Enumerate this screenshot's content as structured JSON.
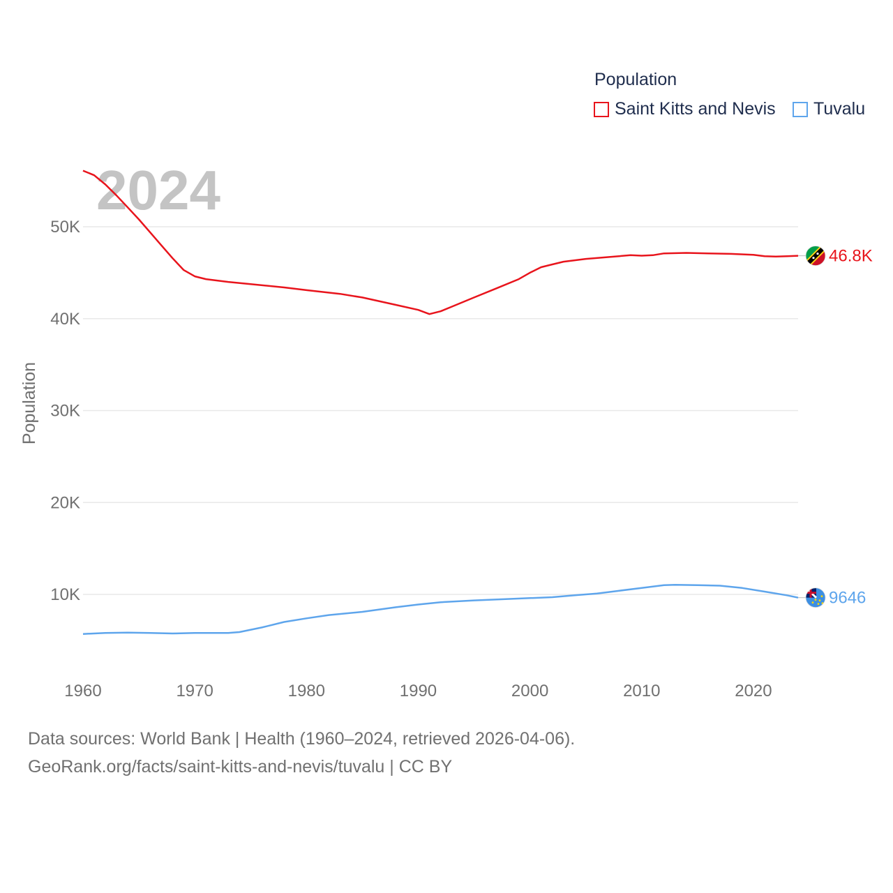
{
  "legend": {
    "title": "Population",
    "items": [
      {
        "label": "Saint Kitts and Nevis",
        "color": "#e8141c"
      },
      {
        "label": "Tuvalu",
        "color": "#5ea5ec"
      }
    ]
  },
  "footer": {
    "line1": "Data sources: World Bank | Health (1960–2024, retrieved 2026-04-06).",
    "line2": "GeoRank.org/facts/saint-kitts-and-nevis/tuvalu | CC BY"
  },
  "chart_data": {
    "type": "line",
    "title": "Population",
    "year_label": "2024",
    "xlabel": "",
    "ylabel": "Population",
    "xlim": [
      1960,
      2024
    ],
    "ylim": [
      4000,
      56000
    ],
    "x_ticks": [
      1960,
      1970,
      1980,
      1990,
      2000,
      2010,
      2020
    ],
    "y_ticks": [
      {
        "value": 10000,
        "label": "10K"
      },
      {
        "value": 20000,
        "label": "20K"
      },
      {
        "value": 30000,
        "label": "30K"
      },
      {
        "value": 40000,
        "label": "40K"
      },
      {
        "value": 50000,
        "label": "50K"
      }
    ],
    "grid": true,
    "series": [
      {
        "name": "Saint Kitts and Nevis",
        "color": "#e8141c",
        "end_label": "46.8K",
        "flag": "saint-kitts-and-nevis-flag",
        "points": [
          [
            1960,
            56100
          ],
          [
            1961,
            55600
          ],
          [
            1962,
            54600
          ],
          [
            1963,
            53400
          ],
          [
            1964,
            52100
          ],
          [
            1965,
            50800
          ],
          [
            1966,
            49400
          ],
          [
            1967,
            48000
          ],
          [
            1968,
            46600
          ],
          [
            1969,
            45300
          ],
          [
            1970,
            44600
          ],
          [
            1971,
            44300
          ],
          [
            1972,
            44150
          ],
          [
            1973,
            44000
          ],
          [
            1975,
            43750
          ],
          [
            1978,
            43400
          ],
          [
            1980,
            43100
          ],
          [
            1983,
            42700
          ],
          [
            1985,
            42300
          ],
          [
            1988,
            41500
          ],
          [
            1990,
            40950
          ],
          [
            1991,
            40500
          ],
          [
            1992,
            40800
          ],
          [
            1993,
            41300
          ],
          [
            1995,
            42300
          ],
          [
            1997,
            43300
          ],
          [
            1999,
            44300
          ],
          [
            2000,
            45000
          ],
          [
            2001,
            45600
          ],
          [
            2002,
            45900
          ],
          [
            2003,
            46200
          ],
          [
            2005,
            46500
          ],
          [
            2007,
            46700
          ],
          [
            2009,
            46900
          ],
          [
            2010,
            46850
          ],
          [
            2011,
            46900
          ],
          [
            2012,
            47100
          ],
          [
            2014,
            47150
          ],
          [
            2016,
            47100
          ],
          [
            2018,
            47050
          ],
          [
            2020,
            46950
          ],
          [
            2021,
            46800
          ],
          [
            2022,
            46750
          ],
          [
            2023,
            46800
          ],
          [
            2024,
            46843
          ]
        ]
      },
      {
        "name": "Tuvalu",
        "color": "#5ea5ec",
        "end_label": "9646",
        "flag": "tuvalu-flag",
        "points": [
          [
            1960,
            5700
          ],
          [
            1962,
            5800
          ],
          [
            1964,
            5850
          ],
          [
            1966,
            5800
          ],
          [
            1968,
            5750
          ],
          [
            1970,
            5800
          ],
          [
            1972,
            5800
          ],
          [
            1973,
            5800
          ],
          [
            1974,
            5900
          ],
          [
            1976,
            6400
          ],
          [
            1978,
            7000
          ],
          [
            1980,
            7400
          ],
          [
            1982,
            7750
          ],
          [
            1985,
            8100
          ],
          [
            1988,
            8600
          ],
          [
            1990,
            8900
          ],
          [
            1992,
            9150
          ],
          [
            1995,
            9350
          ],
          [
            1998,
            9500
          ],
          [
            2000,
            9600
          ],
          [
            2002,
            9700
          ],
          [
            2004,
            9900
          ],
          [
            2006,
            10100
          ],
          [
            2008,
            10400
          ],
          [
            2010,
            10700
          ],
          [
            2012,
            11000
          ],
          [
            2013,
            11050
          ],
          [
            2015,
            11000
          ],
          [
            2017,
            10950
          ],
          [
            2019,
            10700
          ],
          [
            2021,
            10300
          ],
          [
            2023,
            9900
          ],
          [
            2024,
            9646
          ]
        ]
      }
    ]
  }
}
